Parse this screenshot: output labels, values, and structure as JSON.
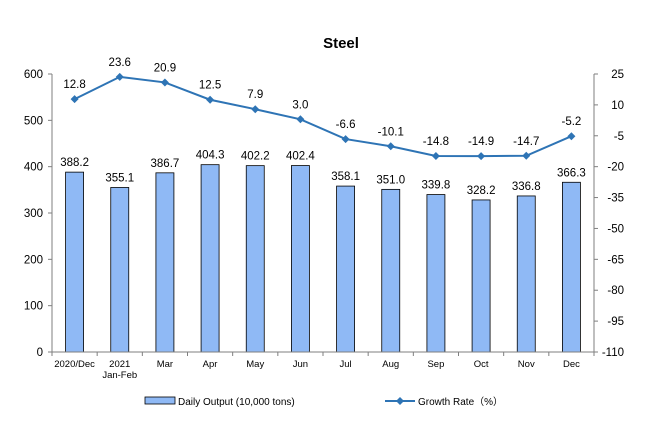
{
  "chart_data": {
    "type": "bar+line",
    "title": "Steel",
    "categories": [
      [
        "2020/Dec"
      ],
      [
        "2021",
        "Jan-Feb"
      ],
      [
        "Mar"
      ],
      [
        "Apr"
      ],
      [
        "May"
      ],
      [
        "Jun"
      ],
      [
        "Jul"
      ],
      [
        "Aug"
      ],
      [
        "Sep"
      ],
      [
        "Oct"
      ],
      [
        "Nov"
      ],
      [
        "Dec"
      ]
    ],
    "series": [
      {
        "name": "Daily Output (10,000 tons)",
        "kind": "bar",
        "axis": "left",
        "color": "#8fb9f5",
        "values": [
          388.2,
          355.1,
          386.7,
          404.3,
          402.2,
          402.4,
          358.1,
          351.0,
          339.8,
          328.2,
          336.8,
          366.3
        ],
        "labels": [
          "388.2",
          "355.1",
          "386.7",
          "404.3",
          "402.2",
          "402.4",
          "358.1",
          "351.0",
          "339.8",
          "328.2",
          "336.8",
          "366.3"
        ]
      },
      {
        "name": "Growth Rate（%）",
        "kind": "line",
        "axis": "right",
        "color": "#2e74b5",
        "values": [
          12.8,
          23.6,
          20.9,
          12.5,
          7.9,
          3.0,
          -6.6,
          -10.1,
          -14.8,
          -14.9,
          -14.7,
          -5.2
        ],
        "labels": [
          "12.8",
          "23.6",
          "20.9",
          "12.5",
          "7.9",
          "3.0",
          "-6.6",
          "-10.1",
          "-14.8",
          "-14.9",
          "-14.7",
          "-5.2"
        ]
      }
    ],
    "y_left": {
      "min": 0,
      "max": 600,
      "ticks": [
        0,
        100,
        200,
        300,
        400,
        500,
        600
      ]
    },
    "y_right": {
      "min": -110,
      "max": 25,
      "ticks": [
        25,
        10,
        -5,
        -20,
        -35,
        -50,
        -65,
        -80,
        -95,
        -110
      ]
    },
    "grid": false,
    "legend": "bottom"
  }
}
